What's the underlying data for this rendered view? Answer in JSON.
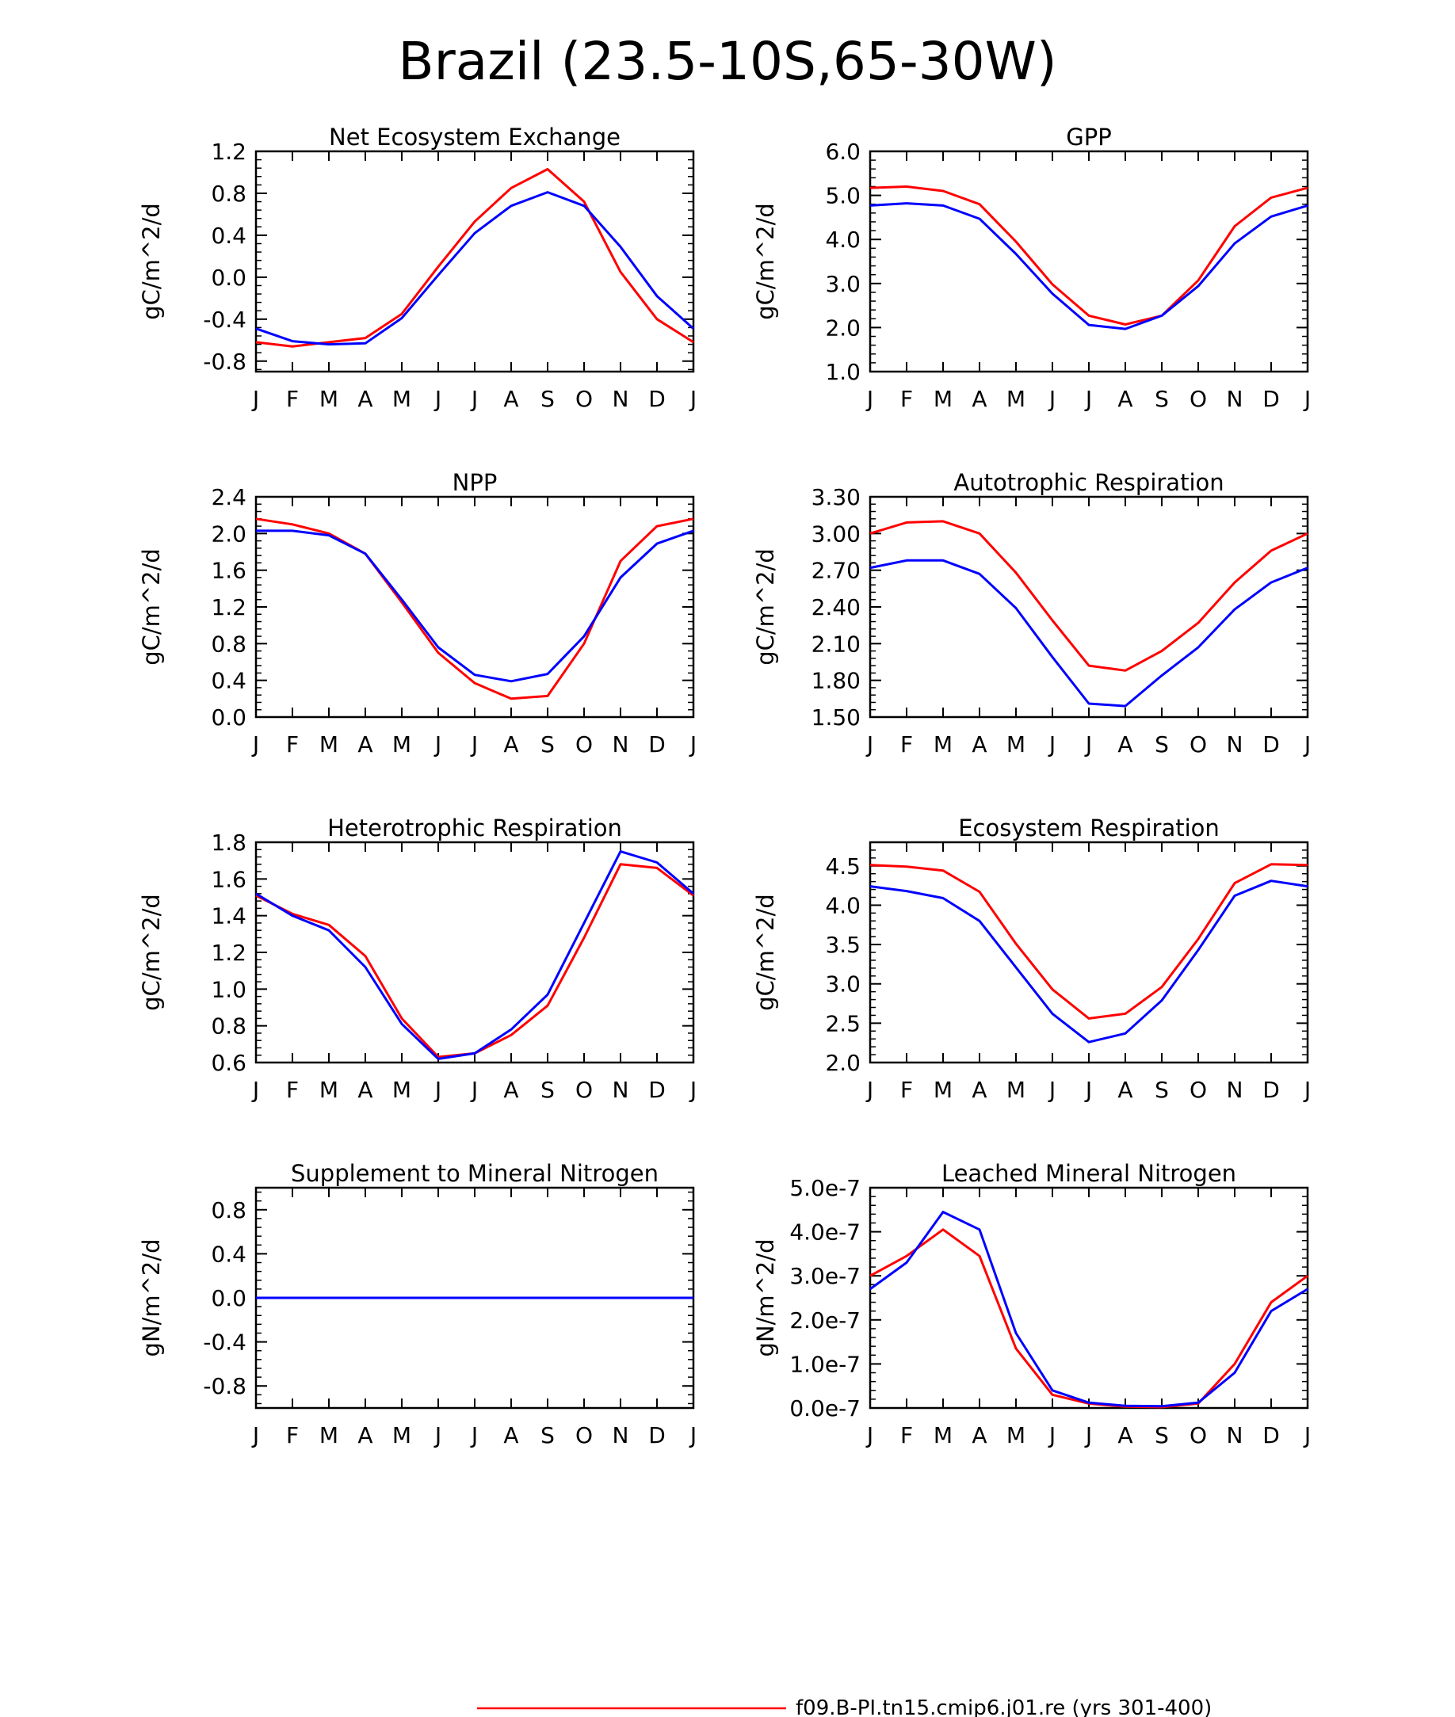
{
  "figure": {
    "title": "Brazil (23.5-10S,65-30W)",
    "legend": {
      "entries": [
        {
          "label": "f09.B-PI.tn15.cmip6.j01.re (yrs 301-400)",
          "color": "#ff0000"
        }
      ]
    },
    "colors": {
      "red": "#ff0000",
      "blue": "#0000ff",
      "axis": "#000000"
    }
  },
  "chart_data": [
    {
      "type": "line",
      "title": "Net Ecosystem Exchange",
      "ylabel": "gC/m^2/d",
      "xlabel": "",
      "x": [
        "J",
        "F",
        "M",
        "A",
        "M",
        "J",
        "J",
        "A",
        "S",
        "O",
        "N",
        "D",
        "J"
      ],
      "ylim": [
        -0.9,
        1.2
      ],
      "yticks": [
        -0.8,
        -0.4,
        0.0,
        0.4,
        0.8,
        1.2
      ],
      "ytick_labels": [
        "-0.8",
        "-0.4",
        "0.0",
        "0.4",
        "0.8",
        "1.2"
      ],
      "series": [
        {
          "color": "#ff0000",
          "values": [
            -0.62,
            -0.66,
            -0.62,
            -0.58,
            -0.35,
            0.1,
            0.53,
            0.85,
            1.03,
            0.72,
            0.05,
            -0.4,
            -0.62
          ]
        },
        {
          "color": "#0000ff",
          "values": [
            -0.49,
            -0.61,
            -0.64,
            -0.63,
            -0.39,
            0.02,
            0.42,
            0.68,
            0.81,
            0.68,
            0.29,
            -0.18,
            -0.49
          ]
        }
      ]
    },
    {
      "type": "line",
      "title": "GPP",
      "ylabel": "gC/m^2/d",
      "xlabel": "",
      "x": [
        "J",
        "F",
        "M",
        "A",
        "M",
        "J",
        "J",
        "A",
        "S",
        "O",
        "N",
        "D",
        "J"
      ],
      "ylim": [
        1.0,
        6.0
      ],
      "yticks": [
        1.0,
        2.0,
        3.0,
        4.0,
        5.0,
        6.0
      ],
      "ytick_labels": [
        "1.0",
        "2.0",
        "3.0",
        "4.0",
        "5.0",
        "6.0"
      ],
      "series": [
        {
          "color": "#ff0000",
          "values": [
            5.17,
            5.2,
            5.1,
            4.8,
            3.95,
            2.98,
            2.27,
            2.07,
            2.27,
            3.07,
            4.3,
            4.95,
            5.17
          ]
        },
        {
          "color": "#0000ff",
          "values": [
            4.77,
            4.82,
            4.77,
            4.47,
            3.67,
            2.77,
            2.06,
            1.97,
            2.27,
            2.94,
            3.91,
            4.52,
            4.77
          ]
        }
      ]
    },
    {
      "type": "line",
      "title": "NPP",
      "ylabel": "gC/m^2/d",
      "xlabel": "",
      "x": [
        "J",
        "F",
        "M",
        "A",
        "M",
        "J",
        "J",
        "A",
        "S",
        "O",
        "N",
        "D",
        "J"
      ],
      "ylim": [
        0.0,
        2.4
      ],
      "yticks": [
        0.0,
        0.4,
        0.8,
        1.2,
        1.6,
        2.0,
        2.4
      ],
      "ytick_labels": [
        "0.0",
        "0.4",
        "0.8",
        "1.2",
        "1.6",
        "2.0",
        "2.4"
      ],
      "series": [
        {
          "color": "#ff0000",
          "values": [
            2.16,
            2.1,
            2.0,
            1.78,
            1.25,
            0.7,
            0.37,
            0.2,
            0.23,
            0.8,
            1.7,
            2.08,
            2.16
          ]
        },
        {
          "color": "#0000ff",
          "values": [
            2.03,
            2.03,
            1.98,
            1.78,
            1.28,
            0.76,
            0.46,
            0.39,
            0.47,
            0.88,
            1.52,
            1.89,
            2.03
          ]
        }
      ]
    },
    {
      "type": "line",
      "title": "Autotrophic Respiration",
      "ylabel": "gC/m^2/d",
      "xlabel": "",
      "x": [
        "J",
        "F",
        "M",
        "A",
        "M",
        "J",
        "J",
        "A",
        "S",
        "O",
        "N",
        "D",
        "J"
      ],
      "ylim": [
        1.5,
        3.3
      ],
      "yticks": [
        1.5,
        1.8,
        2.1,
        2.4,
        2.7,
        3.0,
        3.3
      ],
      "ytick_labels": [
        "1.50",
        "1.80",
        "2.10",
        "2.40",
        "2.70",
        "3.00",
        "3.30"
      ],
      "series": [
        {
          "color": "#ff0000",
          "values": [
            3.0,
            3.09,
            3.1,
            3.0,
            2.68,
            2.29,
            1.92,
            1.88,
            2.04,
            2.27,
            2.6,
            2.86,
            3.0
          ]
        },
        {
          "color": "#0000ff",
          "values": [
            2.72,
            2.78,
            2.78,
            2.67,
            2.39,
            1.99,
            1.61,
            1.59,
            1.84,
            2.07,
            2.38,
            2.6,
            2.72
          ]
        }
      ]
    },
    {
      "type": "line",
      "title": "Heterotrophic Respiration",
      "ylabel": "gC/m^2/d",
      "xlabel": "",
      "x": [
        "J",
        "F",
        "M",
        "A",
        "M",
        "J",
        "J",
        "A",
        "S",
        "O",
        "N",
        "D",
        "J"
      ],
      "ylim": [
        0.6,
        1.8
      ],
      "yticks": [
        0.6,
        0.8,
        1.0,
        1.2,
        1.4,
        1.6,
        1.8
      ],
      "ytick_labels": [
        "0.6",
        "0.8",
        "1.0",
        "1.2",
        "1.4",
        "1.6",
        "1.8"
      ],
      "series": [
        {
          "color": "#ff0000",
          "values": [
            1.51,
            1.41,
            1.35,
            1.18,
            0.84,
            0.63,
            0.65,
            0.75,
            0.91,
            1.28,
            1.68,
            1.66,
            1.51
          ]
        },
        {
          "color": "#0000ff",
          "values": [
            1.52,
            1.4,
            1.32,
            1.12,
            0.81,
            0.62,
            0.65,
            0.78,
            0.97,
            1.36,
            1.75,
            1.69,
            1.52
          ]
        }
      ]
    },
    {
      "type": "line",
      "title": "Ecosystem Respiration",
      "ylabel": "gC/m^2/d",
      "xlabel": "",
      "x": [
        "J",
        "F",
        "M",
        "A",
        "M",
        "J",
        "J",
        "A",
        "S",
        "O",
        "N",
        "D",
        "J"
      ],
      "ylim": [
        2.0,
        4.8
      ],
      "yticks": [
        2.0,
        2.5,
        3.0,
        3.5,
        4.0,
        4.5
      ],
      "ytick_labels": [
        "2.0",
        "2.5",
        "3.0",
        "3.5",
        "4.0",
        "4.5"
      ],
      "series": [
        {
          "color": "#ff0000",
          "values": [
            4.51,
            4.49,
            4.44,
            4.17,
            3.51,
            2.93,
            2.56,
            2.62,
            2.96,
            3.57,
            4.28,
            4.52,
            4.51
          ]
        },
        {
          "color": "#0000ff",
          "values": [
            4.24,
            4.18,
            4.09,
            3.8,
            3.21,
            2.62,
            2.26,
            2.37,
            2.79,
            3.43,
            4.12,
            4.31,
            4.24
          ]
        }
      ]
    },
    {
      "type": "line",
      "title": "Supplement to Mineral Nitrogen",
      "ylabel": "gN/m^2/d",
      "xlabel": "",
      "x": [
        "J",
        "F",
        "M",
        "A",
        "M",
        "J",
        "J",
        "A",
        "S",
        "O",
        "N",
        "D",
        "J"
      ],
      "ylim": [
        -1.0,
        1.0
      ],
      "yticks": [
        -0.8,
        -0.4,
        0.0,
        0.4,
        0.8
      ],
      "ytick_labels": [
        "-0.8",
        "-0.4",
        "0.0",
        "0.4",
        "0.8"
      ],
      "series": [
        {
          "color": "#ff0000",
          "values": [
            0,
            0,
            0,
            0,
            0,
            0,
            0,
            0,
            0,
            0,
            0,
            0,
            0
          ]
        },
        {
          "color": "#0000ff",
          "values": [
            0,
            0,
            0,
            0,
            0,
            0,
            0,
            0,
            0,
            0,
            0,
            0,
            0
          ]
        }
      ]
    },
    {
      "type": "line",
      "title": "Leached Mineral Nitrogen",
      "ylabel": "gN/m^2/d",
      "xlabel": "",
      "x": [
        "J",
        "F",
        "M",
        "A",
        "M",
        "J",
        "J",
        "A",
        "S",
        "O",
        "N",
        "D",
        "J"
      ],
      "ylim": [
        0.0,
        5e-07
      ],
      "yticks": [
        0.0,
        1e-07,
        2e-07,
        3e-07,
        4e-07,
        5e-07
      ],
      "ytick_labels": [
        "0.0e-7",
        "1.0e-7",
        "2.0e-7",
        "3.0e-7",
        "4.0e-7",
        "5.0e-7"
      ],
      "series": [
        {
          "color": "#ff0000",
          "values": [
            3e-07,
            3.45e-07,
            4.05e-07,
            3.45e-07,
            1.35e-07,
            3e-08,
            1e-08,
            3e-09,
            2e-09,
            1e-08,
            1e-07,
            2.4e-07,
            3e-07
          ]
        },
        {
          "color": "#0000ff",
          "values": [
            2.7e-07,
            3.3e-07,
            4.45e-07,
            4.05e-07,
            1.7e-07,
            4e-08,
            1.2e-08,
            5e-09,
            4e-09,
            1.2e-08,
            8e-08,
            2.2e-07,
            2.7e-07
          ]
        }
      ]
    }
  ]
}
